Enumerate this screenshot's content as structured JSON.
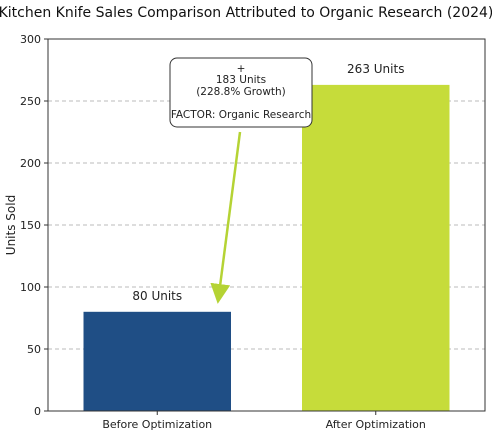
{
  "chart_data": {
    "type": "bar",
    "title": "Kitchen Knife Sales Comparison Attributed to Organic Research (2024)",
    "ylabel": "Units Sold",
    "xlabel": "",
    "categories": [
      "Before Optimization",
      "After Optimization"
    ],
    "values": [
      80,
      263
    ],
    "data_labels": [
      "80 Units",
      "263 Units"
    ],
    "colors": [
      "#1f4e85",
      "#c6dc3a"
    ],
    "ylim": [
      0,
      300
    ],
    "yticks": [
      0,
      50,
      100,
      150,
      200,
      250,
      300
    ],
    "grid": true,
    "annotation": {
      "lines": [
        "+",
        "183 Units",
        "(228.8% Growth)",
        "",
        "FACTOR: Organic Research"
      ],
      "arrow_color": "#b5d334"
    }
  }
}
